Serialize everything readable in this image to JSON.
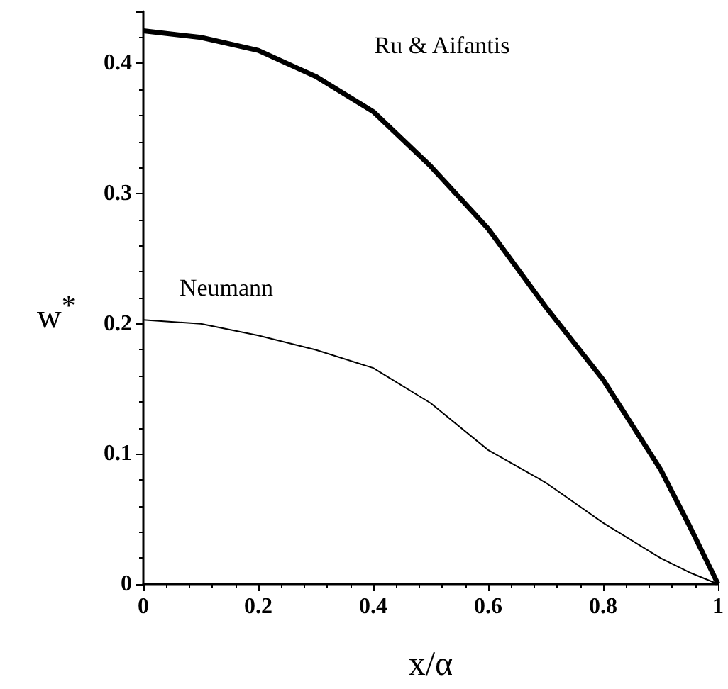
{
  "chart_data": {
    "type": "line",
    "xlabel": "x/α",
    "ylabel": "w$^{*}$",
    "xlim": [
      0,
      1
    ],
    "xticks": [
      0,
      0.2,
      0.4,
      0.6,
      0.8,
      1
    ],
    "ylim": [
      0,
      0.44
    ],
    "yticks": [
      0,
      0.1,
      0.2,
      0.3,
      0.4
    ],
    "x": [
      0,
      0.1,
      0.2,
      0.3,
      0.4,
      0.5,
      0.6,
      0.7,
      0.8,
      0.9,
      0.95,
      1
    ],
    "series": [
      {
        "name": "Ru & Aifantis",
        "color": "#000000",
        "values": [
          0.425,
          0.42,
          0.41,
          0.39,
          0.363,
          0.321,
          0.273,
          0.213,
          0.157,
          0.088,
          0.045,
          0
        ]
      },
      {
        "name": "Neumann",
        "color": "#000000",
        "values": [
          0.203,
          0.2,
          0.191,
          0.18,
          0.166,
          0.139,
          0.103,
          0.078,
          0.047,
          0.02,
          0.009,
          0
        ]
      }
    ],
    "grid": false,
    "legend": false,
    "marker": "none",
    "line_style": "solid"
  }
}
